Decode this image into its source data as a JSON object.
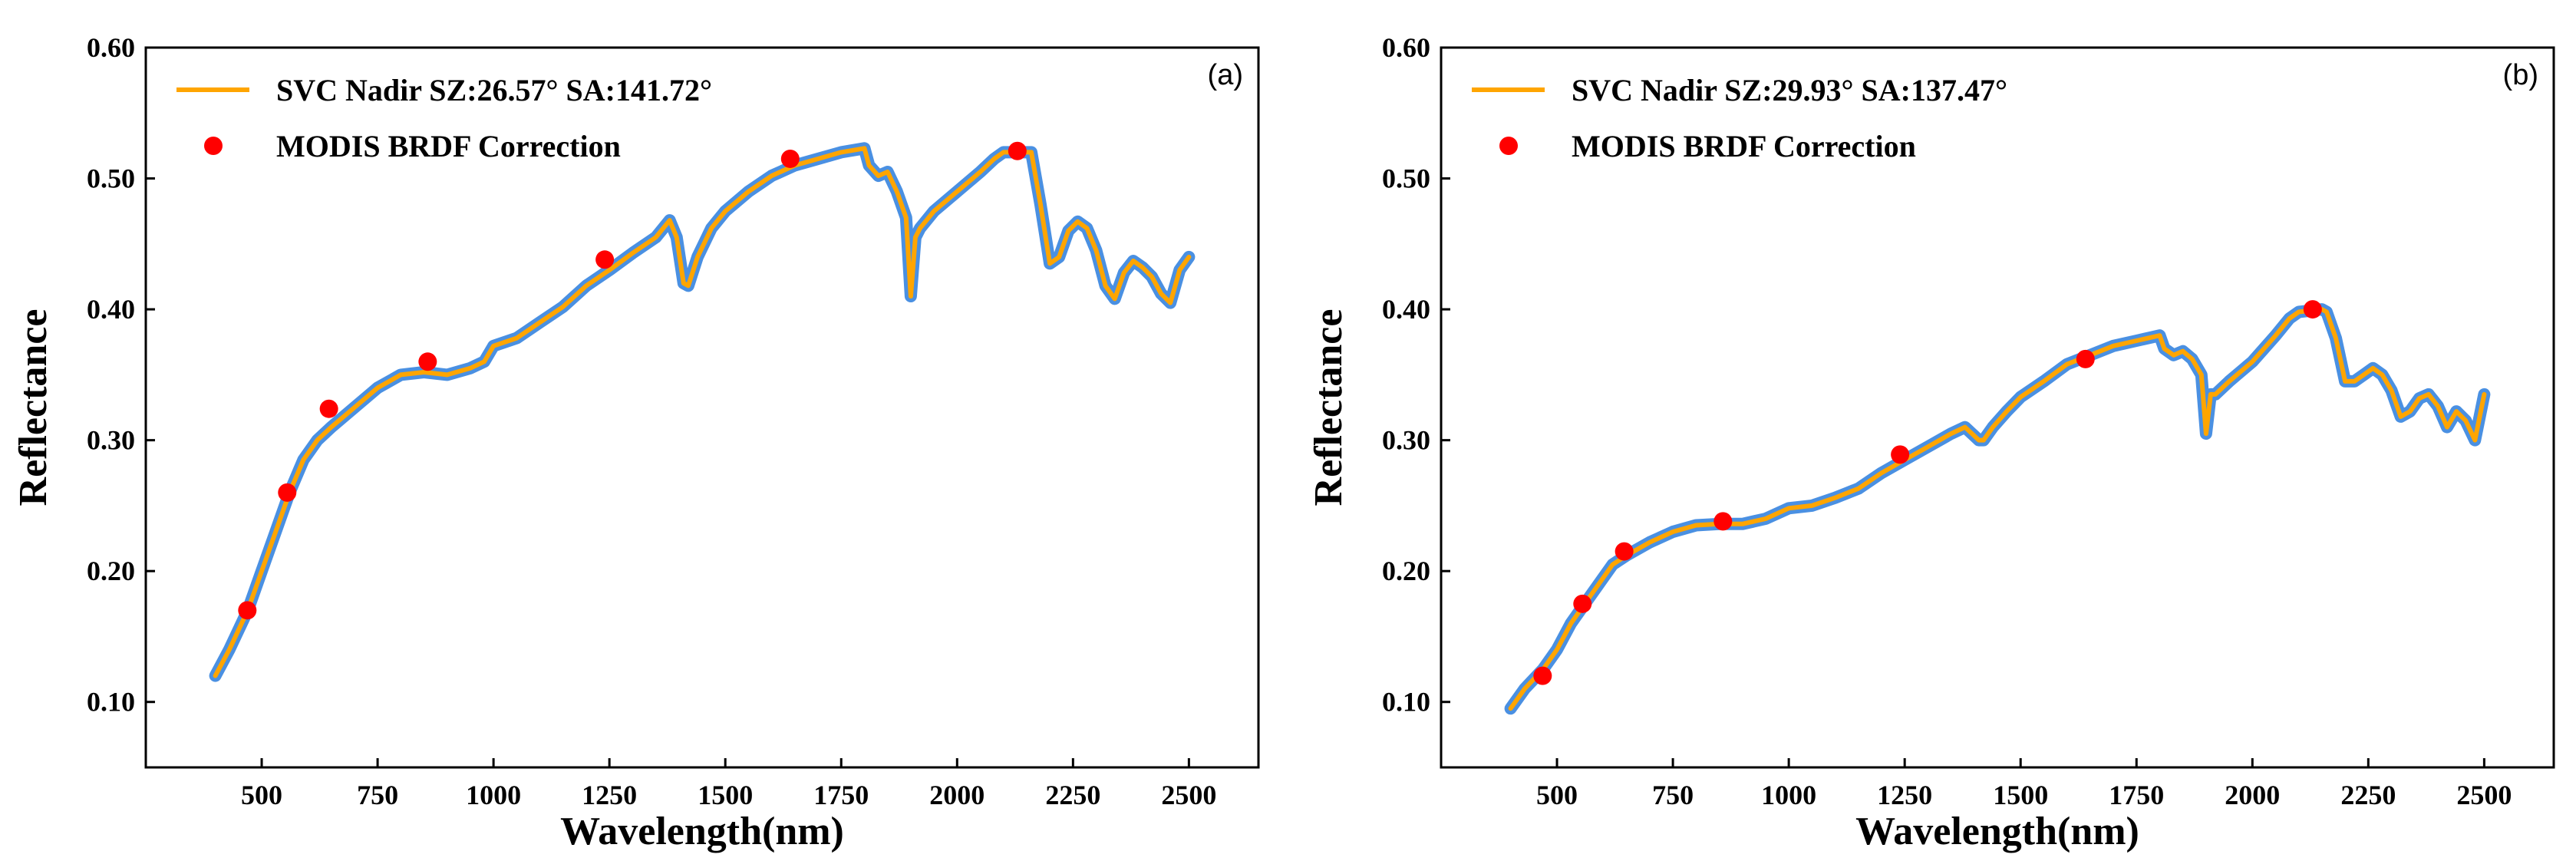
{
  "chart_data": [
    {
      "type": "line",
      "panel_label": "(a)",
      "xlabel": "Wavelength(nm)",
      "ylabel": "Reflectance",
      "xlim": [
        250,
        2650
      ],
      "ylim": [
        0.05,
        0.6
      ],
      "xticks": [
        500,
        750,
        1000,
        1250,
        1500,
        1750,
        2000,
        2250,
        2500
      ],
      "xtick_labels": [
        "500",
        "750",
        "1000",
        "1250",
        "1500",
        "1750",
        "2000",
        "2250",
        "2500"
      ],
      "yticks": [
        0.1,
        0.2,
        0.3,
        0.4,
        0.5,
        0.6
      ],
      "ytick_labels": [
        "0.10",
        "0.20",
        "0.30",
        "0.40",
        "0.50",
        "0.60"
      ],
      "legend_position": "top-left",
      "series": [
        {
          "name": "SVC Nadir SZ:26.57° SA:141.72°",
          "kind": "line",
          "color": "#FFA500",
          "band_color": "#4A90E2",
          "x": [
            400,
            430,
            470,
            500,
            530,
            560,
            590,
            620,
            650,
            700,
            750,
            800,
            850,
            900,
            950,
            980,
            1000,
            1050,
            1100,
            1150,
            1200,
            1250,
            1300,
            1350,
            1380,
            1395,
            1410,
            1420,
            1440,
            1470,
            1500,
            1550,
            1600,
            1650,
            1700,
            1750,
            1800,
            1810,
            1830,
            1850,
            1870,
            1890,
            1900,
            1910,
            1920,
            1950,
            2000,
            2050,
            2080,
            2100,
            2150,
            2160,
            2180,
            2200,
            2220,
            2240,
            2260,
            2280,
            2300,
            2320,
            2340,
            2360,
            2380,
            2400,
            2420,
            2440,
            2460,
            2480,
            2500
          ],
          "values": [
            0.12,
            0.14,
            0.17,
            0.2,
            0.23,
            0.26,
            0.285,
            0.3,
            0.31,
            0.325,
            0.34,
            0.35,
            0.352,
            0.35,
            0.355,
            0.36,
            0.372,
            0.378,
            0.39,
            0.402,
            0.418,
            0.43,
            0.443,
            0.455,
            0.468,
            0.455,
            0.42,
            0.418,
            0.44,
            0.462,
            0.475,
            0.49,
            0.502,
            0.51,
            0.515,
            0.52,
            0.523,
            0.51,
            0.502,
            0.505,
            0.49,
            0.47,
            0.41,
            0.455,
            0.462,
            0.475,
            0.49,
            0.505,
            0.515,
            0.52,
            0.52,
            0.52,
            0.48,
            0.435,
            0.44,
            0.46,
            0.467,
            0.462,
            0.445,
            0.418,
            0.408,
            0.428,
            0.437,
            0.432,
            0.425,
            0.412,
            0.405,
            0.43,
            0.44
          ]
        },
        {
          "name": "MODIS BRDF Correction",
          "kind": "scatter",
          "color": "#FF0000",
          "x": [
            469,
            555,
            645,
            858,
            1240,
            1640,
            2130
          ],
          "values": [
            0.17,
            0.26,
            0.324,
            0.36,
            0.438,
            0.515,
            0.521
          ]
        }
      ]
    },
    {
      "type": "line",
      "panel_label": "(b)",
      "xlabel": "Wavelength(nm)",
      "ylabel": "Reflectance",
      "xlim": [
        250,
        2650
      ],
      "ylim": [
        0.05,
        0.6
      ],
      "xticks": [
        500,
        750,
        1000,
        1250,
        1500,
        1750,
        2000,
        2250,
        2500
      ],
      "xtick_labels": [
        "500",
        "750",
        "1000",
        "1250",
        "1500",
        "1750",
        "2000",
        "2250",
        "2500"
      ],
      "yticks": [
        0.1,
        0.2,
        0.3,
        0.4,
        0.5,
        0.6
      ],
      "ytick_labels": [
        "0.10",
        "0.20",
        "0.30",
        "0.40",
        "0.50",
        "0.60"
      ],
      "legend_position": "top-left",
      "series": [
        {
          "name": "SVC Nadir SZ:29.93° SA:137.47°",
          "kind": "line",
          "color": "#FFA500",
          "band_color": "#4A90E2",
          "x": [
            400,
            430,
            470,
            500,
            530,
            560,
            590,
            620,
            650,
            700,
            750,
            800,
            850,
            900,
            950,
            1000,
            1050,
            1100,
            1150,
            1200,
            1250,
            1300,
            1350,
            1380,
            1395,
            1410,
            1420,
            1440,
            1470,
            1500,
            1550,
            1600,
            1650,
            1700,
            1750,
            1800,
            1810,
            1830,
            1850,
            1870,
            1890,
            1900,
            1910,
            1920,
            1950,
            2000,
            2050,
            2080,
            2100,
            2150,
            2160,
            2180,
            2200,
            2220,
            2240,
            2260,
            2280,
            2300,
            2320,
            2340,
            2360,
            2380,
            2400,
            2420,
            2440,
            2460,
            2480,
            2500
          ],
          "values": [
            0.095,
            0.11,
            0.125,
            0.14,
            0.16,
            0.175,
            0.19,
            0.205,
            0.212,
            0.222,
            0.23,
            0.235,
            0.236,
            0.236,
            0.24,
            0.248,
            0.25,
            0.256,
            0.263,
            0.275,
            0.285,
            0.295,
            0.305,
            0.31,
            0.305,
            0.3,
            0.3,
            0.31,
            0.322,
            0.333,
            0.345,
            0.358,
            0.365,
            0.372,
            0.376,
            0.38,
            0.37,
            0.365,
            0.368,
            0.362,
            0.35,
            0.305,
            0.335,
            0.335,
            0.345,
            0.36,
            0.38,
            0.393,
            0.398,
            0.4,
            0.398,
            0.378,
            0.345,
            0.345,
            0.35,
            0.355,
            0.35,
            0.338,
            0.318,
            0.322,
            0.332,
            0.335,
            0.326,
            0.31,
            0.322,
            0.315,
            0.3,
            0.335
          ]
        },
        {
          "name": "MODIS BRDF Correction",
          "kind": "scatter",
          "color": "#FF0000",
          "x": [
            469,
            555,
            645,
            858,
            1240,
            1640,
            2130
          ],
          "values": [
            0.12,
            0.175,
            0.215,
            0.238,
            0.289,
            0.362,
            0.4
          ]
        }
      ]
    }
  ]
}
